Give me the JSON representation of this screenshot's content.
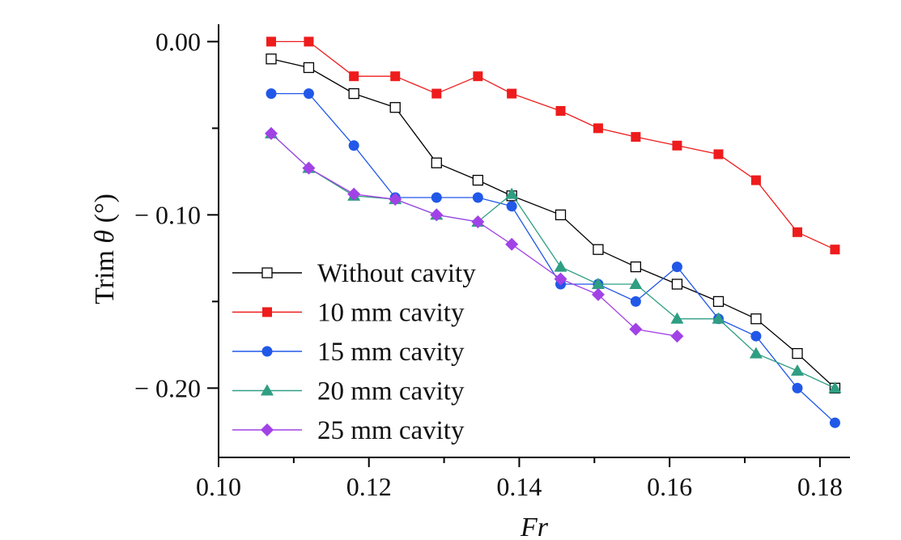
{
  "chart_data": {
    "type": "line",
    "xlabel": "Fr",
    "ylabel_prefix": "Trim ",
    "ylabel_symbol": "θ",
    "ylabel_suffix": " (°)",
    "xlim": [
      0.1,
      0.184
    ],
    "ylim": [
      -0.24,
      0.01
    ],
    "xticks": [
      0.1,
      0.12,
      0.14,
      0.16,
      0.18
    ],
    "xtick_labels": [
      "0.10",
      "0.12",
      "0.14",
      "0.16",
      "0.18"
    ],
    "yticks": [
      0.0,
      -0.1,
      -0.2
    ],
    "ytick_labels": [
      "0.00",
      "− 0.10",
      "− 0.20"
    ],
    "grid": false,
    "legend_position": "bottom-left",
    "series": [
      {
        "name": "Without cavity",
        "color": "#000000",
        "marker": "square-open",
        "x": [
          0.107,
          0.112,
          0.118,
          0.1235,
          0.129,
          0.1345,
          0.139,
          0.1455,
          0.1505,
          0.1555,
          0.161,
          0.1665,
          0.1715,
          0.177,
          0.182
        ],
        "y": [
          -0.01,
          -0.015,
          -0.03,
          -0.038,
          -0.07,
          -0.08,
          -0.089,
          -0.1,
          -0.12,
          -0.13,
          -0.14,
          -0.15,
          -0.16,
          -0.18,
          -0.2
        ]
      },
      {
        "name": "10 mm cavity",
        "color": "#ee1c1c",
        "marker": "square",
        "x": [
          0.107,
          0.112,
          0.118,
          0.1235,
          0.129,
          0.1345,
          0.139,
          0.1455,
          0.1505,
          0.1555,
          0.161,
          0.1665,
          0.1715,
          0.177,
          0.182
        ],
        "y": [
          0.0,
          0.0,
          -0.02,
          -0.02,
          -0.03,
          -0.02,
          -0.03,
          -0.04,
          -0.05,
          -0.055,
          -0.06,
          -0.065,
          -0.08,
          -0.11,
          -0.12
        ]
      },
      {
        "name": "15 mm cavity",
        "color": "#2158e8",
        "marker": "circle",
        "x": [
          0.107,
          0.112,
          0.118,
          0.1235,
          0.129,
          0.1345,
          0.139,
          0.1455,
          0.1505,
          0.1555,
          0.161,
          0.1665,
          0.1715,
          0.177,
          0.182
        ],
        "y": [
          -0.03,
          -0.03,
          -0.06,
          -0.09,
          -0.09,
          -0.09,
          -0.095,
          -0.14,
          -0.14,
          -0.15,
          -0.13,
          -0.16,
          -0.17,
          -0.2,
          -0.22
        ]
      },
      {
        "name": "20 mm cavity",
        "color": "#2f9e83",
        "marker": "triangle",
        "x": [
          0.107,
          0.112,
          0.118,
          0.1235,
          0.129,
          0.1345,
          0.139,
          0.1455,
          0.1505,
          0.1555,
          0.161,
          0.1665,
          0.1715,
          0.177,
          0.182
        ],
        "y": [
          -0.053,
          -0.073,
          -0.089,
          -0.091,
          -0.1,
          -0.104,
          -0.088,
          -0.13,
          -0.14,
          -0.14,
          -0.16,
          -0.16,
          -0.18,
          -0.19,
          -0.2
        ]
      },
      {
        "name": "25 mm cavity",
        "color": "#a142e6",
        "marker": "diamond",
        "x": [
          0.107,
          0.112,
          0.118,
          0.1235,
          0.129,
          0.1345,
          0.139,
          0.1455,
          0.1505,
          0.1555,
          0.161
        ],
        "y": [
          -0.053,
          -0.073,
          -0.088,
          -0.091,
          -0.1,
          -0.104,
          -0.117,
          -0.137,
          -0.146,
          -0.166,
          -0.17
        ]
      }
    ]
  }
}
